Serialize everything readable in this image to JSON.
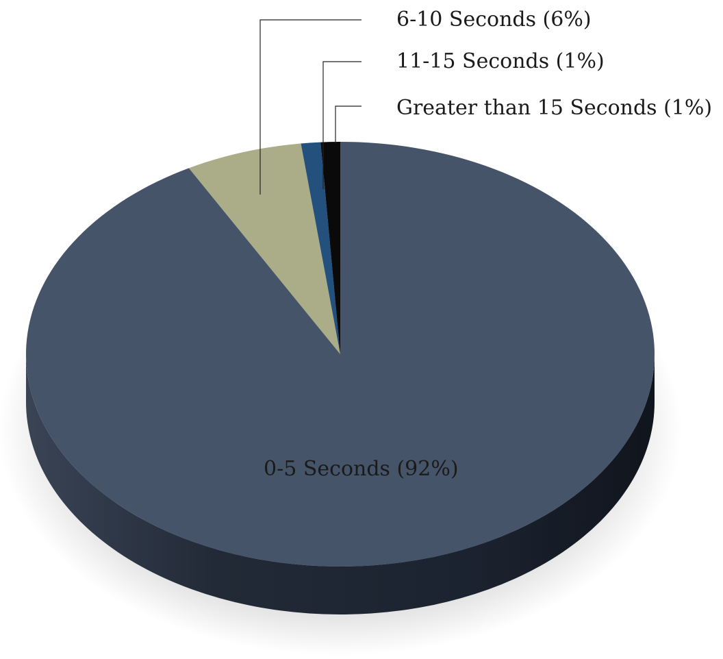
{
  "chart_data": {
    "type": "pie",
    "title": "",
    "legend": "none",
    "categories": [
      "0-5 Seconds",
      "6-10 Seconds",
      "11-15 Seconds",
      "Greater than 15 Seconds"
    ],
    "values": [
      92,
      6,
      1,
      1
    ],
    "labels": [
      "0-5 Seconds (92%)",
      "6-10 Seconds (6%)",
      "11-15 Seconds (1%)",
      "Greater than 15 Seconds (1%)"
    ],
    "colors": [
      "#465469",
      "#abac88",
      "#23507d",
      "#0a0a0a"
    ]
  }
}
